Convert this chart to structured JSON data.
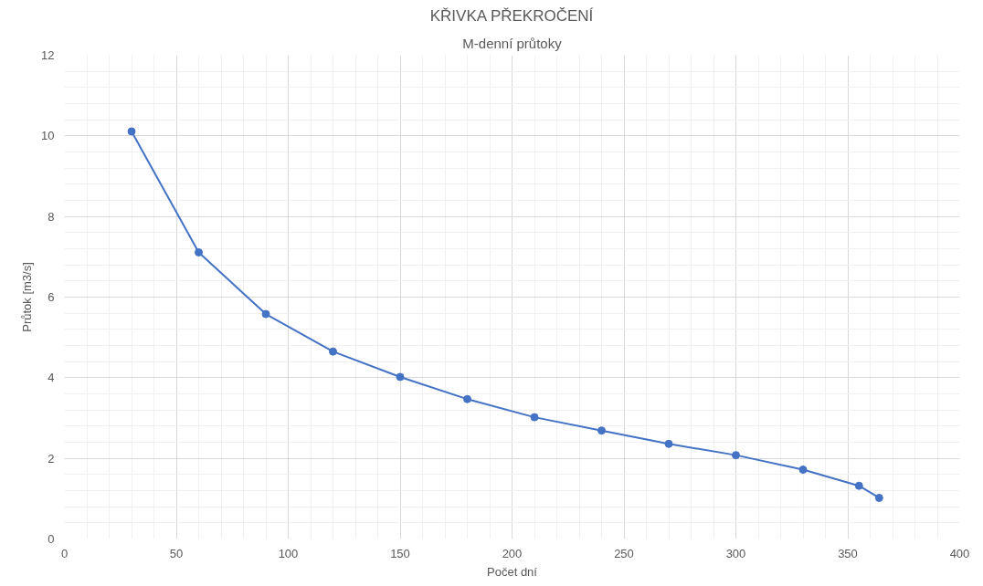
{
  "chart_data": {
    "type": "line",
    "title": "KŘIVKA PŘEKROČENÍ",
    "subtitle": "M-denní průtoky",
    "xlabel": "Počet dní",
    "ylabel": "Průtok [m3/s]",
    "x": [
      30,
      60,
      90,
      120,
      150,
      180,
      210,
      240,
      270,
      300,
      330,
      355,
      364
    ],
    "series": [
      {
        "color": "#4472c4",
        "values": [
          10.11,
          7.11,
          5.58,
          4.65,
          4.02,
          3.47,
          3.02,
          2.69,
          2.36,
          2.08,
          1.72,
          1.32,
          1.02
        ]
      }
    ],
    "xlim": [
      0,
      400
    ],
    "xticks": [
      0,
      50,
      100,
      150,
      200,
      250,
      300,
      350,
      400
    ],
    "ylim": [
      0,
      12
    ],
    "yticks": [
      0,
      2,
      4,
      6,
      8,
      10,
      12
    ],
    "grid": true,
    "marker": "circle",
    "line_style": "solid"
  }
}
